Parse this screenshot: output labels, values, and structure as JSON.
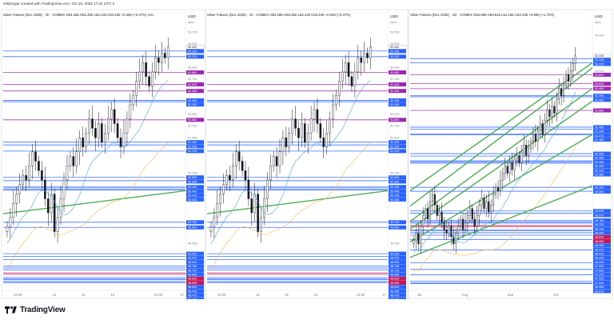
{
  "creator_line": "erikbregar created with TradingView.com, Oct 16, 2025 17:24 UTC-4",
  "brand": "TradingView",
  "colors": {
    "up": "#26a69a",
    "candle": "#131722",
    "blue_level": "#2962ff",
    "purple_level": "#9c27b0",
    "green_trend": "#4caf50",
    "ma_fast": "#42a5f5",
    "ma_slow": "#ffb74d",
    "magenta_tag": "#c2185b",
    "price_line": "#ef5350"
  },
  "icons": [
    "tradingview-logo-icon"
  ],
  "panels": [
    {
      "id": "p1",
      "header": "Silver Futures (Dec 2025) · 1h · COMEX  O53.185  H53.450  L53.130  C53.430  +0.250 (+0.47%)  Vol...",
      "currency": "USD",
      "currency2": "epoc",
      "x_labels": [
        "12:00",
        "14",
        "15",
        "16",
        "12:00",
        "17"
      ],
      "chart_data": {
        "type": "candlestick",
        "title": "Silver Futures (Dec 2025)",
        "timeframe": "1h",
        "ohlc_last": {
          "o": 53.185,
          "h": 53.45,
          "l": 53.13,
          "c": 53.43
        },
        "ylim": [
          48.3,
          53.75
        ],
        "y_ticks": [
          "53.750",
          "53.500",
          "53.000",
          "52.750",
          "52.000",
          "51.750",
          "51.500",
          "50.750",
          "49.250"
        ],
        "price_tags": [
          {
            "label": "53.430",
            "value": 53.43,
            "kind": "last"
          },
          {
            "label": "53.345",
            "value": 53.345,
            "kind": "blue"
          },
          {
            "label": "53.225",
            "value": 53.225,
            "kind": "blue"
          },
          {
            "label": "52.890",
            "value": 52.89,
            "kind": "purple"
          },
          {
            "label": "52.635",
            "value": 52.635,
            "kind": "purple"
          },
          {
            "label": "52.495",
            "value": 52.495,
            "kind": "purple"
          },
          {
            "label": "52.295",
            "value": 52.295,
            "kind": "blue"
          },
          {
            "label": "52.265",
            "value": 52.265,
            "kind": "blue"
          },
          {
            "label": "51.880",
            "value": 51.88,
            "kind": "purple"
          },
          {
            "label": "51.405",
            "value": 51.405,
            "kind": "blue"
          },
          {
            "label": "51.345",
            "value": 51.345,
            "kind": "blue"
          },
          {
            "label": "51.215",
            "value": 51.215,
            "kind": "blue"
          },
          {
            "label": "50.655",
            "value": 50.655,
            "kind": "blue"
          },
          {
            "label": "50.585",
            "value": 50.585,
            "kind": "blue"
          },
          {
            "label": "50.450",
            "value": 50.45,
            "kind": "blue"
          },
          {
            "label": "50.445",
            "value": 50.445,
            "kind": "blue"
          },
          {
            "label": "50.410",
            "value": 50.41,
            "kind": "blue"
          },
          {
            "label": "50.385",
            "value": 50.385,
            "kind": "blue"
          },
          {
            "label": "49.700",
            "value": 49.7,
            "kind": "blue"
          },
          {
            "label": "49.590",
            "value": 49.59,
            "kind": "blue"
          },
          {
            "label": "49.030",
            "value": 49.03,
            "kind": "blue"
          },
          {
            "label": "48.970",
            "value": 48.97,
            "kind": "blue"
          },
          {
            "label": "48.905",
            "value": 48.905,
            "kind": "blue"
          },
          {
            "label": "48.765",
            "value": 48.765,
            "kind": "blue"
          },
          {
            "label": "48.725",
            "value": 48.725,
            "kind": "blue"
          },
          {
            "label": "48.685",
            "value": 48.685,
            "kind": "blue"
          },
          {
            "label": "48.620",
            "value": 48.62,
            "kind": "magenta"
          },
          {
            "label": "48.590",
            "value": 48.59,
            "kind": "magenta"
          },
          {
            "label": "48.520",
            "value": 48.52,
            "kind": "blue"
          },
          {
            "label": "48.490",
            "value": 48.49,
            "kind": "blue"
          },
          {
            "label": "48.475",
            "value": 48.475,
            "kind": "blue"
          },
          {
            "label": "48.435",
            "value": 48.435,
            "kind": "blue"
          },
          {
            "label": "48.415",
            "value": 48.415,
            "kind": "blue"
          }
        ],
        "close": [
          49.6,
          49.8,
          50.1,
          50.3,
          50.5,
          50.7,
          50.6,
          50.9,
          51.2,
          51.0,
          50.8,
          50.6,
          50.2,
          49.9,
          50.3,
          49.5,
          49.8,
          50.2,
          50.6,
          50.9,
          51.1,
          50.9,
          51.2,
          51.5,
          51.3,
          51.6,
          51.9,
          51.7,
          51.5,
          51.8,
          51.4,
          51.6,
          51.9,
          52.1,
          51.8,
          51.5,
          51.3,
          51.6,
          51.9,
          52.2,
          52.4,
          52.7,
          52.9,
          53.1,
          52.8,
          52.6,
          52.9,
          53.2,
          53.1,
          53.3,
          53.2,
          53.43
        ]
      }
    },
    {
      "id": "p2",
      "header": "Silver Futures (Dec 2025) · 1h · COMEX  O53.185  H53.450  L53.130  C53.430  +0.250 (+0.47%)",
      "currency": "USD",
      "currency2": "epoc",
      "x_labels": [
        "12:00",
        "14",
        "15",
        "16",
        "12:00",
        "17"
      ],
      "chart_data": {
        "type": "candlestick",
        "title": "Silver Futures (Dec 2025)",
        "timeframe": "1h",
        "ohlc_last": {
          "o": 53.185,
          "h": 53.45,
          "l": 53.13,
          "c": 53.43
        },
        "ylim": [
          48.3,
          53.75
        ],
        "y_ticks": [
          "53.750",
          "53.500",
          "53.000",
          "52.750",
          "52.000",
          "51.750",
          "51.500",
          "50.750",
          "49.250"
        ],
        "price_tags": [
          {
            "label": "53.430",
            "value": 53.43,
            "kind": "last"
          },
          {
            "label": "53.345",
            "value": 53.345,
            "kind": "blue"
          },
          {
            "label": "53.225",
            "value": 53.225,
            "kind": "blue"
          },
          {
            "label": "52.890",
            "value": 52.89,
            "kind": "purple"
          },
          {
            "label": "52.635",
            "value": 52.635,
            "kind": "purple"
          },
          {
            "label": "52.495",
            "value": 52.495,
            "kind": "purple"
          },
          {
            "label": "52.295",
            "value": 52.295,
            "kind": "blue"
          },
          {
            "label": "52.265",
            "value": 52.265,
            "kind": "blue"
          },
          {
            "label": "51.880",
            "value": 51.88,
            "kind": "purple"
          },
          {
            "label": "51.405",
            "value": 51.405,
            "kind": "blue"
          },
          {
            "label": "51.345",
            "value": 51.345,
            "kind": "blue"
          },
          {
            "label": "51.215",
            "value": 51.215,
            "kind": "blue"
          },
          {
            "label": "50.655",
            "value": 50.655,
            "kind": "blue"
          },
          {
            "label": "50.585",
            "value": 50.585,
            "kind": "blue"
          },
          {
            "label": "50.450",
            "value": 50.45,
            "kind": "blue"
          },
          {
            "label": "50.445",
            "value": 50.445,
            "kind": "blue"
          },
          {
            "label": "50.410",
            "value": 50.41,
            "kind": "blue"
          },
          {
            "label": "50.385",
            "value": 50.385,
            "kind": "blue"
          },
          {
            "label": "49.700",
            "value": 49.7,
            "kind": "blue"
          },
          {
            "label": "49.590",
            "value": 49.59,
            "kind": "blue"
          },
          {
            "label": "49.030",
            "value": 49.03,
            "kind": "blue"
          },
          {
            "label": "48.970",
            "value": 48.97,
            "kind": "blue"
          },
          {
            "label": "48.905",
            "value": 48.905,
            "kind": "blue"
          },
          {
            "label": "48.765",
            "value": 48.765,
            "kind": "blue"
          },
          {
            "label": "48.725",
            "value": 48.725,
            "kind": "blue"
          },
          {
            "label": "48.685",
            "value": 48.685,
            "kind": "blue"
          },
          {
            "label": "48.620",
            "value": 48.62,
            "kind": "magenta"
          },
          {
            "label": "48.590",
            "value": 48.59,
            "kind": "magenta"
          },
          {
            "label": "48.520",
            "value": 48.52,
            "kind": "blue"
          },
          {
            "label": "48.490",
            "value": 48.49,
            "kind": "blue"
          },
          {
            "label": "48.475",
            "value": 48.475,
            "kind": "blue"
          },
          {
            "label": "48.435",
            "value": 48.435,
            "kind": "blue"
          },
          {
            "label": "48.415",
            "value": 48.415,
            "kind": "blue"
          }
        ],
        "close": [
          49.6,
          49.8,
          50.1,
          50.3,
          50.5,
          50.7,
          50.6,
          50.9,
          51.2,
          51.0,
          50.8,
          50.6,
          50.2,
          49.9,
          50.3,
          49.5,
          49.8,
          50.2,
          50.6,
          50.9,
          51.1,
          50.9,
          51.2,
          51.5,
          51.3,
          51.6,
          51.9,
          51.7,
          51.5,
          51.8,
          51.4,
          51.6,
          51.9,
          52.1,
          51.8,
          51.5,
          51.3,
          51.6,
          51.9,
          52.2,
          52.4,
          52.7,
          52.9,
          53.1,
          52.8,
          52.6,
          52.9,
          53.2,
          53.1,
          53.3,
          53.2,
          53.43
        ]
      }
    },
    {
      "id": "p3",
      "header": "Silver Futures (Dec 2025) · 1D · COMEX  O52.590  H53.615  L51.195  C53.430  +0.905 (+1.72%)",
      "currency": "USD",
      "currency2": "epoc",
      "x_labels": [
        "Jul",
        "Aug",
        "Sep",
        "Oct"
      ],
      "chart_data": {
        "type": "candlestick",
        "title": "Silver Futures (Dec 2025)",
        "timeframe": "1D",
        "ohlc_last": {
          "o": 52.59,
          "h": 53.615,
          "l": 51.195,
          "c": 53.43
        },
        "ylim": [
          46.85,
          54.1
        ],
        "y_ticks": [
          "54.000",
          "53.000"
        ],
        "price_tags": [
          {
            "label": "53.430",
            "value": 53.43,
            "kind": "last"
          },
          {
            "label": "53.345",
            "value": 53.345,
            "kind": "blue"
          },
          {
            "label": "53.225",
            "value": 53.225,
            "kind": "blue"
          },
          {
            "label": "52.890",
            "value": 52.89,
            "kind": "purple"
          },
          {
            "label": "52.635",
            "value": 52.635,
            "kind": "purple"
          },
          {
            "label": "52.495",
            "value": 52.495,
            "kind": "purple"
          },
          {
            "label": "52.295",
            "value": 52.295,
            "kind": "blue"
          },
          {
            "label": "52.265",
            "value": 52.265,
            "kind": "blue"
          },
          {
            "label": "51.880",
            "value": 51.88,
            "kind": "purple"
          },
          {
            "label": "51.405",
            "value": 51.405,
            "kind": "blue"
          },
          {
            "label": "51.345",
            "value": 51.345,
            "kind": "blue"
          },
          {
            "label": "51.215",
            "value": 51.215,
            "kind": "blue"
          },
          {
            "label": "51.185",
            "value": 51.185,
            "kind": "blue"
          },
          {
            "label": "50.655",
            "value": 50.655,
            "kind": "blue"
          },
          {
            "label": "50.585",
            "value": 50.585,
            "kind": "blue"
          },
          {
            "label": "50.450",
            "value": 50.45,
            "kind": "blue"
          },
          {
            "label": "50.445",
            "value": 50.445,
            "kind": "blue"
          },
          {
            "label": "50.410",
            "value": 50.41,
            "kind": "blue"
          },
          {
            "label": "50.385",
            "value": 50.385,
            "kind": "blue"
          },
          {
            "label": "49.700",
            "value": 49.7,
            "kind": "blue"
          },
          {
            "label": "49.590",
            "value": 49.59,
            "kind": "blue"
          },
          {
            "label": "49.030",
            "value": 49.03,
            "kind": "blue"
          },
          {
            "label": "48.970",
            "value": 48.97,
            "kind": "blue"
          },
          {
            "label": "48.765",
            "value": 48.765,
            "kind": "blue"
          },
          {
            "label": "48.725",
            "value": 48.725,
            "kind": "blue"
          },
          {
            "label": "48.720",
            "value": 48.72,
            "kind": "blue"
          },
          {
            "label": "48.685",
            "value": 48.685,
            "kind": "blue"
          },
          {
            "label": "48.620",
            "value": 48.62,
            "kind": "magenta"
          },
          {
            "label": "48.590",
            "value": 48.59,
            "kind": "magenta"
          },
          {
            "label": "48.490",
            "value": 48.49,
            "kind": "blue"
          },
          {
            "label": "48.475",
            "value": 48.475,
            "kind": "blue"
          },
          {
            "label": "48.415",
            "value": 48.415,
            "kind": "blue"
          },
          {
            "label": "48.345",
            "value": 48.345,
            "kind": "blue"
          },
          {
            "label": "48.225",
            "value": 48.225,
            "kind": "blue"
          },
          {
            "label": "47.930",
            "value": 47.93,
            "kind": "blue"
          },
          {
            "label": "47.560",
            "value": 47.56,
            "kind": "blue"
          },
          {
            "label": "47.375",
            "value": 47.375,
            "kind": "blue"
          },
          {
            "label": "47.225",
            "value": 47.225,
            "kind": "blue"
          },
          {
            "label": "47.040",
            "value": 47.04,
            "kind": "blue"
          },
          {
            "label": "46.990",
            "value": 46.99,
            "kind": "blue"
          },
          {
            "label": "46.975",
            "value": 46.975,
            "kind": "blue"
          }
        ],
        "close": [
          48.2,
          48.4,
          48.1,
          48.6,
          48.9,
          49.1,
          48.8,
          49.3,
          49.5,
          49.2,
          48.9,
          49.0,
          48.7,
          48.5,
          48.4,
          48.6,
          48.3,
          48.1,
          48.4,
          48.6,
          48.8,
          48.5,
          48.7,
          48.9,
          49.1,
          48.8,
          48.6,
          48.9,
          49.2,
          49.4,
          49.1,
          49.3,
          49.0,
          49.2,
          49.5,
          49.7,
          49.6,
          49.9,
          50.1,
          50.3,
          50.1,
          50.4,
          50.2,
          50.5,
          50.6,
          50.4,
          50.7,
          50.9,
          50.6,
          50.8,
          51.0,
          51.2,
          51.0,
          51.3,
          51.5,
          51.2,
          51.6,
          51.9,
          51.7,
          52.0,
          51.8,
          52.2,
          52.5,
          52.3,
          52.6,
          52.9,
          52.7,
          53.0,
          53.2,
          53.43
        ]
      }
    }
  ]
}
